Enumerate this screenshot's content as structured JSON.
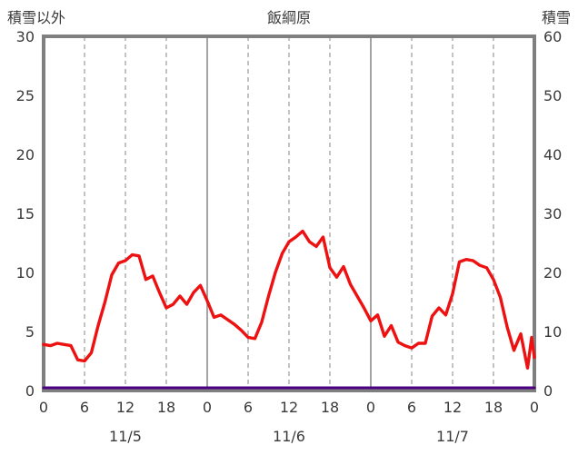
{
  "header": {
    "left_label": "積雪以外",
    "title": "飯綱原",
    "right_label": "積雪"
  },
  "chart_data": {
    "type": "line",
    "title": "飯綱原",
    "left_axis": {
      "label": "積雪以外",
      "min": 0,
      "max": 30,
      "ticks": [
        0,
        5,
        10,
        15,
        20,
        25,
        30
      ]
    },
    "right_axis": {
      "label": "積雪",
      "min": 0,
      "max": 60,
      "ticks": [
        0,
        10,
        20,
        30,
        40,
        50,
        60
      ]
    },
    "x_axis": {
      "unit": "hour",
      "min": 0,
      "max": 72,
      "tick_hours": [
        0,
        6,
        12,
        18,
        24,
        30,
        36,
        42,
        48,
        54,
        60,
        66,
        72
      ],
      "tick_labels": [
        "0",
        "6",
        "12",
        "18",
        "0",
        "6",
        "12",
        "18",
        "0",
        "6",
        "12",
        "18",
        "0"
      ],
      "day_labels": [
        {
          "label": "11/5",
          "center_hour": 12
        },
        {
          "label": "11/6",
          "center_hour": 36
        },
        {
          "label": "11/7",
          "center_hour": 60
        }
      ]
    },
    "grid": {
      "vertical_dashed_hours": [
        6,
        12,
        18,
        30,
        36,
        42,
        54,
        60,
        66
      ],
      "vertical_solid_hours": [
        24,
        48
      ]
    },
    "series": [
      {
        "name": "積雪以外",
        "axis": "left",
        "color": "#ee1111",
        "x": [
          0,
          1,
          2,
          3,
          4,
          5,
          6,
          7,
          8,
          9,
          10,
          11,
          12,
          13,
          14,
          15,
          16,
          17,
          18,
          19,
          20,
          21,
          22,
          23,
          24,
          25,
          26,
          27,
          28,
          29,
          30,
          31,
          32,
          33,
          34,
          35,
          36,
          37,
          38,
          39,
          40,
          41,
          42,
          43,
          44,
          45,
          46,
          47,
          48,
          49,
          50,
          51,
          52,
          53,
          54,
          55,
          56,
          57,
          58,
          59,
          60,
          61,
          62,
          63,
          64,
          65,
          66,
          67,
          68,
          69,
          70,
          71,
          71.6,
          72
        ],
        "values": [
          3.9,
          3.8,
          4.0,
          3.9,
          3.8,
          2.6,
          2.5,
          3.2,
          5.5,
          7.5,
          9.8,
          10.8,
          11.0,
          11.5,
          11.4,
          9.4,
          9.7,
          8.3,
          7.0,
          7.3,
          8.0,
          7.3,
          8.3,
          8.9,
          7.6,
          6.2,
          6.4,
          6.0,
          5.6,
          5.1,
          4.5,
          4.4,
          5.8,
          8.0,
          10.0,
          11.6,
          12.6,
          13.0,
          13.5,
          12.6,
          12.2,
          13.0,
          10.4,
          9.6,
          10.5,
          9.0,
          8.0,
          7.0,
          5.9,
          6.4,
          4.6,
          5.5,
          4.1,
          3.8,
          3.6,
          4.0,
          4.0,
          6.3,
          7.0,
          6.4,
          8.2,
          10.9,
          11.1,
          11.0,
          10.6,
          10.4,
          9.4,
          7.9,
          5.4,
          3.4,
          4.8,
          1.9,
          4.5,
          2.8
        ]
      },
      {
        "name": "積雪",
        "axis": "right",
        "color": "#4b0082",
        "x": [
          0,
          72
        ],
        "values": [
          0,
          0
        ]
      }
    ]
  },
  "colors": {
    "frame": "#7f7f7f",
    "grid": "#858585",
    "text": "#3a3a3a",
    "background": "#ffffff"
  }
}
